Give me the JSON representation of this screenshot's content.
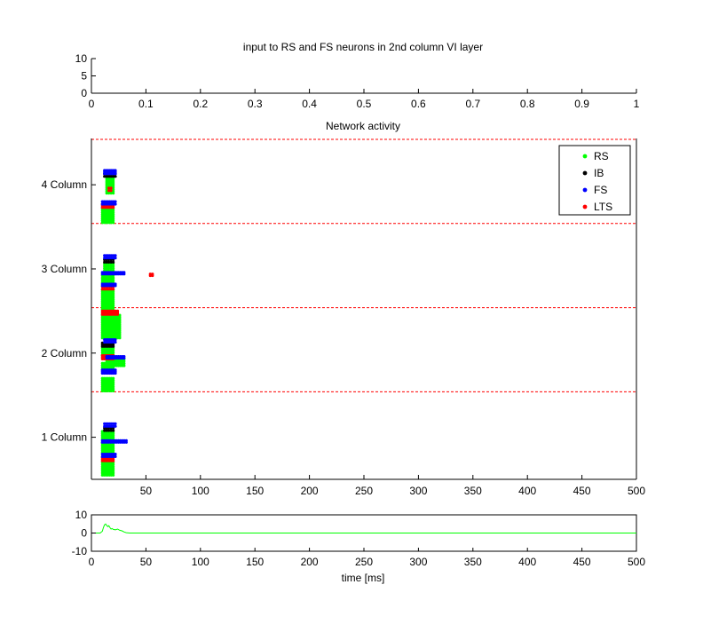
{
  "chart_data": [
    {
      "id": "input",
      "type": "line",
      "title": "input to RS and FS neurons in 2nd column VI layer",
      "xlim": [
        0,
        1
      ],
      "ylim": [
        0,
        10
      ],
      "xticks": [
        "0",
        "0.1",
        "0.2",
        "0.3",
        "0.4",
        "0.5",
        "0.6",
        "0.7",
        "0.8",
        "0.9",
        "1"
      ],
      "yticks": [
        "0",
        "5",
        "10"
      ],
      "series": []
    },
    {
      "id": "network",
      "type": "scatter",
      "title": "Network activity",
      "xlim": [
        0,
        500
      ],
      "ylim": [
        0.5,
        4.55
      ],
      "xticks": [
        "50",
        "100",
        "150",
        "200",
        "250",
        "300",
        "350",
        "400",
        "450",
        "500"
      ],
      "yticks": [
        {
          "value": 1,
          "label": "1 Column"
        },
        {
          "value": 2,
          "label": "2 Column"
        },
        {
          "value": 3,
          "label": "3 Column"
        },
        {
          "value": 4,
          "label": "4 Column"
        }
      ],
      "separators": [
        1.54,
        2.54,
        3.54,
        4.54
      ],
      "separator_color": "#ff0000",
      "legend_position": "top-right",
      "legend": [
        {
          "name": "RS",
          "color": "#00ff00"
        },
        {
          "name": "IB",
          "color": "#000000"
        },
        {
          "name": "FS",
          "color": "#0000ff"
        },
        {
          "name": "LTS",
          "color": "#ff0000"
        }
      ],
      "points": [
        {
          "type": "RS",
          "x": [
            10,
            20
          ],
          "y": [
            0.55,
            0.7
          ]
        },
        {
          "type": "LTS",
          "x": [
            10,
            20
          ],
          "y": [
            0.72,
            0.76
          ]
        },
        {
          "type": "FS",
          "x": [
            10,
            22
          ],
          "y": [
            0.77,
            0.8
          ]
        },
        {
          "type": "RS",
          "x": [
            10,
            20
          ],
          "y": [
            0.82,
            0.93
          ]
        },
        {
          "type": "FS",
          "x": [
            10,
            32
          ],
          "y": [
            0.94,
            0.96
          ]
        },
        {
          "type": "RS",
          "x": [
            10,
            20
          ],
          "y": [
            0.98,
            1.07
          ]
        },
        {
          "type": "IB",
          "x": [
            12,
            20
          ],
          "y": [
            1.08,
            1.11
          ]
        },
        {
          "type": "FS",
          "x": [
            12,
            22
          ],
          "y": [
            1.13,
            1.16
          ]
        },
        {
          "type": "RS",
          "x": [
            10,
            20
          ],
          "y": [
            1.55,
            1.7
          ]
        },
        {
          "type": "FS",
          "x": [
            10,
            22
          ],
          "y": [
            1.76,
            1.8
          ]
        },
        {
          "type": "RS",
          "x": [
            10,
            20
          ],
          "y": [
            1.8,
            1.88
          ]
        },
        {
          "type": "RS",
          "x": [
            14,
            30
          ],
          "y": [
            1.85,
            1.93
          ]
        },
        {
          "type": "LTS",
          "x": [
            10,
            20
          ],
          "y": [
            1.93,
            1.97
          ]
        },
        {
          "type": "FS",
          "x": [
            14,
            30
          ],
          "y": [
            1.94,
            1.96
          ]
        },
        {
          "type": "RS",
          "x": [
            10,
            20
          ],
          "y": [
            1.98,
            2.06
          ]
        },
        {
          "type": "IB",
          "x": [
            10,
            20
          ],
          "y": [
            2.08,
            2.12
          ]
        },
        {
          "type": "FS",
          "x": [
            12,
            22
          ],
          "y": [
            2.13,
            2.16
          ]
        },
        {
          "type": "RS",
          "x": [
            10,
            26
          ],
          "y": [
            2.18,
            2.45
          ]
        },
        {
          "type": "LTS",
          "x": [
            10,
            24
          ],
          "y": [
            2.46,
            2.5
          ]
        },
        {
          "type": "RS",
          "x": [
            10,
            20
          ],
          "y": [
            2.52,
            2.75
          ]
        },
        {
          "type": "LTS",
          "x": [
            10,
            20
          ],
          "y": [
            2.76,
            2.79
          ]
        },
        {
          "type": "FS",
          "x": [
            10,
            22
          ],
          "y": [
            2.8,
            2.82
          ]
        },
        {
          "type": "RS",
          "x": [
            10,
            20
          ],
          "y": [
            2.84,
            2.92
          ]
        },
        {
          "type": "FS",
          "x": [
            10,
            30
          ],
          "y": [
            2.94,
            2.96
          ]
        },
        {
          "type": "LTS",
          "x": [
            54,
            56
          ],
          "y": [
            2.92,
            2.94
          ]
        },
        {
          "type": "RS",
          "x": [
            12,
            20
          ],
          "y": [
            2.98,
            3.06
          ]
        },
        {
          "type": "IB",
          "x": [
            12,
            20
          ],
          "y": [
            3.08,
            3.11
          ]
        },
        {
          "type": "FS",
          "x": [
            12,
            22
          ],
          "y": [
            3.13,
            3.16
          ]
        },
        {
          "type": "RS",
          "x": [
            10,
            20
          ],
          "y": [
            3.55,
            3.72
          ]
        },
        {
          "type": "LTS",
          "x": [
            10,
            20
          ],
          "y": [
            3.73,
            3.77
          ]
        },
        {
          "type": "FS",
          "x": [
            10,
            22
          ],
          "y": [
            3.77,
            3.8
          ]
        },
        {
          "type": "RS",
          "x": [
            14,
            20
          ],
          "y": [
            3.9,
            4.1
          ]
        },
        {
          "type": "LTS",
          "x": [
            16,
            18
          ],
          "y": [
            3.93,
            3.96
          ]
        },
        {
          "type": "IB",
          "x": [
            12,
            22
          ],
          "y": [
            4.1,
            4.13
          ]
        },
        {
          "type": "FS",
          "x": [
            12,
            22
          ],
          "y": [
            4.13,
            4.17
          ]
        }
      ]
    },
    {
      "id": "field",
      "type": "line",
      "title": "",
      "xlabel": "time [ms]",
      "xlim": [
        0,
        500
      ],
      "ylim": [
        -10,
        10
      ],
      "xticks": [
        "0",
        "50",
        "100",
        "150",
        "200",
        "250",
        "300",
        "350",
        "400",
        "450",
        "500"
      ],
      "yticks": [
        "-10",
        "0",
        "10"
      ],
      "series": [
        {
          "color": "#00ff00",
          "x": [
            0,
            8,
            10,
            11,
            12,
            13,
            14,
            15,
            16,
            17,
            18,
            19,
            20,
            22,
            24,
            26,
            28,
            30,
            32,
            35,
            500
          ],
          "y": [
            0,
            0,
            1,
            3,
            4.5,
            5,
            4.2,
            3.5,
            4,
            3,
            2.2,
            2.5,
            2,
            1.8,
            2.2,
            1.5,
            1.2,
            0.6,
            0.2,
            0,
            0
          ]
        }
      ]
    }
  ]
}
